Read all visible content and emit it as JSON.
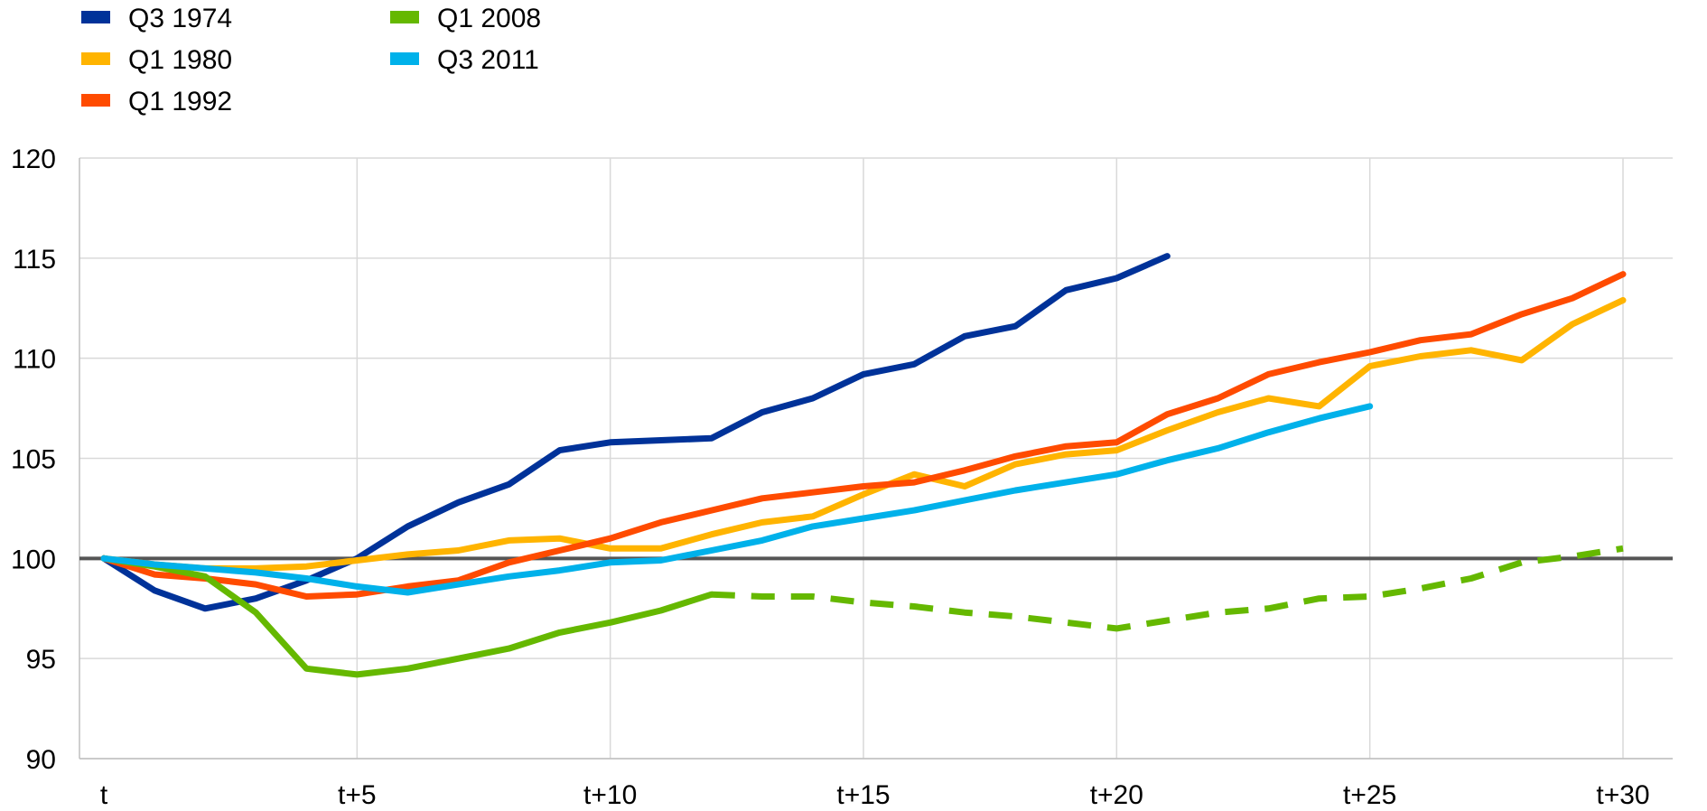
{
  "chart_data": {
    "type": "line",
    "title": "",
    "xlabel": "",
    "ylabel": "",
    "x_range": [
      0,
      30
    ],
    "ylim": [
      90,
      120
    ],
    "y_ticks": [
      90,
      95,
      100,
      105,
      110,
      115,
      120
    ],
    "x_ticks": [
      {
        "x": 0,
        "label": "t"
      },
      {
        "x": 5,
        "label": "t+5"
      },
      {
        "x": 10,
        "label": "t+10"
      },
      {
        "x": 15,
        "label": "t+15"
      },
      {
        "x": 20,
        "label": "t+20"
      },
      {
        "x": 25,
        "label": "t+25"
      },
      {
        "x": 30,
        "label": "t+30"
      }
    ],
    "reference_line": 100,
    "grid": true,
    "legend_position": "top-left",
    "series": [
      {
        "name": "Q3 1974",
        "color": "#003299",
        "x": [
          0,
          1,
          2,
          3,
          4,
          5,
          6,
          7,
          8,
          9,
          10,
          11,
          12,
          13,
          14,
          15,
          16,
          17,
          18,
          19,
          20,
          21
        ],
        "values": [
          100,
          98.4,
          97.5,
          98.0,
          98.9,
          100.0,
          101.6,
          102.8,
          103.7,
          105.4,
          105.8,
          105.9,
          106.0,
          107.3,
          108.0,
          109.2,
          109.7,
          111.1,
          111.6,
          113.4,
          114.0,
          115.1
        ]
      },
      {
        "name": "Q1 1980",
        "color": "#FFB400",
        "x": [
          0,
          1,
          2,
          3,
          4,
          5,
          6,
          7,
          8,
          9,
          10,
          11,
          12,
          13,
          14,
          15,
          16,
          17,
          18,
          19,
          20,
          21,
          22,
          23,
          24,
          25,
          26,
          27,
          28,
          29,
          30
        ],
        "values": [
          100,
          99.7,
          99.5,
          99.5,
          99.6,
          99.9,
          100.2,
          100.4,
          100.9,
          101.0,
          100.5,
          100.5,
          101.2,
          101.8,
          102.1,
          103.2,
          104.2,
          103.6,
          104.7,
          105.2,
          105.4,
          106.4,
          107.3,
          108.0,
          107.6,
          109.6,
          110.1,
          110.4,
          109.9,
          111.7,
          112.9
        ]
      },
      {
        "name": "Q1 1992",
        "color": "#FF4B00",
        "x": [
          0,
          1,
          2,
          3,
          4,
          5,
          6,
          7,
          8,
          9,
          10,
          11,
          12,
          13,
          14,
          15,
          16,
          17,
          18,
          19,
          20,
          21,
          22,
          23,
          24,
          25,
          26,
          27,
          28,
          29,
          30
        ],
        "values": [
          100,
          99.2,
          99.0,
          98.7,
          98.1,
          98.2,
          98.6,
          98.9,
          99.8,
          100.4,
          101.0,
          101.8,
          102.4,
          103.0,
          103.3,
          103.6,
          103.8,
          104.4,
          105.1,
          105.6,
          105.8,
          107.2,
          108.0,
          109.2,
          109.8,
          110.3,
          110.9,
          111.2,
          112.2,
          113.0,
          114.2
        ]
      },
      {
        "name": "Q1 2008",
        "color": "#65B800",
        "x": [
          0,
          1,
          2,
          3,
          4,
          5,
          6,
          7,
          8,
          9,
          10,
          11,
          12
        ],
        "values": [
          100,
          99.6,
          99.1,
          97.3,
          94.5,
          94.2,
          94.5,
          95.0,
          95.5,
          96.3,
          96.8,
          97.4,
          98.2
        ]
      },
      {
        "name": "",
        "color": "#65B800",
        "dashed": true,
        "x": [
          12,
          13,
          14,
          15,
          16,
          17,
          18,
          19,
          20,
          21,
          22,
          23,
          24,
          25,
          26,
          27,
          28,
          29,
          30
        ],
        "values": [
          98.2,
          98.1,
          98.1,
          97.8,
          97.6,
          97.3,
          97.1,
          96.8,
          96.5,
          96.9,
          97.3,
          97.5,
          98.0,
          98.1,
          98.5,
          99.0,
          99.8,
          100.1,
          100.5
        ]
      },
      {
        "name": "Q3 2011",
        "color": "#00B1EA",
        "x": [
          0,
          1,
          2,
          3,
          4,
          5,
          6,
          7,
          8,
          9,
          10,
          11,
          12,
          13,
          14,
          15,
          16,
          17,
          18,
          19,
          20,
          21,
          22,
          23,
          24,
          25
        ],
        "values": [
          100,
          99.7,
          99.5,
          99.3,
          99.0,
          98.6,
          98.3,
          98.7,
          99.1,
          99.4,
          99.8,
          99.9,
          100.4,
          100.9,
          101.6,
          102.0,
          102.4,
          102.9,
          103.4,
          103.8,
          104.2,
          104.9,
          105.5,
          106.3,
          107.0,
          107.6
        ]
      }
    ]
  }
}
